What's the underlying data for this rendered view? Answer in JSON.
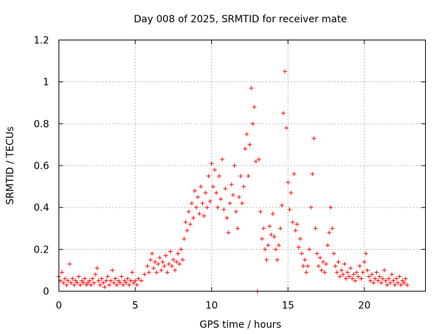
{
  "chart_data": {
    "type": "scatter",
    "title": "Day 008 of 2025, SRMTID for receiver mate",
    "xlabel": "GPS time / hours",
    "ylabel": "SRMTID / TECUs",
    "xlim": [
      0,
      24
    ],
    "ylim": [
      0,
      1.2
    ],
    "xticks": [
      0,
      5,
      10,
      15,
      20
    ],
    "xtick_labels": [
      "0",
      "5",
      "10",
      "15",
      "20"
    ],
    "yticks": [
      0,
      0.2,
      0.4,
      0.6,
      0.8,
      1,
      1.2
    ],
    "ytick_labels": [
      "0",
      "0.2",
      "0.4",
      "0.6",
      "0.8",
      "1",
      "1.2"
    ],
    "grid": true,
    "marker": "+",
    "color": "#ff0000",
    "series": [
      {
        "name": "SRMTID",
        "points": [
          [
            0.0,
            0.07
          ],
          [
            0.1,
            0.05
          ],
          [
            0.2,
            0.09
          ],
          [
            0.3,
            0.04
          ],
          [
            0.4,
            0.06
          ],
          [
            0.5,
            0.03
          ],
          [
            0.6,
            0.05
          ],
          [
            0.7,
            0.13
          ],
          [
            0.8,
            0.04
          ],
          [
            0.9,
            0.06
          ],
          [
            1.0,
            0.03
          ],
          [
            1.1,
            0.05
          ],
          [
            1.2,
            0.04
          ],
          [
            1.3,
            0.07
          ],
          [
            1.4,
            0.03
          ],
          [
            1.5,
            0.05
          ],
          [
            1.6,
            0.04
          ],
          [
            1.7,
            0.06
          ],
          [
            1.8,
            0.03
          ],
          [
            1.9,
            0.04
          ],
          [
            2.0,
            0.05
          ],
          [
            2.1,
            0.03
          ],
          [
            2.2,
            0.06
          ],
          [
            2.3,
            0.04
          ],
          [
            2.4,
            0.08
          ],
          [
            2.5,
            0.11
          ],
          [
            2.6,
            0.05
          ],
          [
            2.7,
            0.03
          ],
          [
            2.8,
            0.06
          ],
          [
            2.9,
            0.04
          ],
          [
            3.0,
            0.02
          ],
          [
            3.1,
            0.05
          ],
          [
            3.2,
            0.07
          ],
          [
            3.3,
            0.03
          ],
          [
            3.4,
            0.05
          ],
          [
            3.5,
            0.1
          ],
          [
            3.6,
            0.04
          ],
          [
            3.7,
            0.06
          ],
          [
            3.8,
            0.03
          ],
          [
            3.9,
            0.05
          ],
          [
            4.0,
            0.04
          ],
          [
            4.1,
            0.07
          ],
          [
            4.2,
            0.03
          ],
          [
            4.3,
            0.05
          ],
          [
            4.4,
            0.04
          ],
          [
            4.5,
            0.06
          ],
          [
            4.6,
            0.03
          ],
          [
            4.7,
            0.05
          ],
          [
            4.8,
            0.09
          ],
          [
            4.9,
            0.04
          ],
          [
            5.0,
            0.05
          ],
          [
            5.1,
            0.03
          ],
          [
            5.2,
            0.06
          ],
          [
            5.4,
            0.05
          ],
          [
            5.6,
            0.08
          ],
          [
            5.8,
            0.12
          ],
          [
            5.9,
            0.09
          ],
          [
            6.0,
            0.15
          ],
          [
            6.1,
            0.18
          ],
          [
            6.2,
            0.11
          ],
          [
            6.3,
            0.14
          ],
          [
            6.4,
            0.09
          ],
          [
            6.5,
            0.13
          ],
          [
            6.6,
            0.16
          ],
          [
            6.7,
            0.1
          ],
          [
            6.8,
            0.14
          ],
          [
            6.9,
            0.12
          ],
          [
            7.0,
            0.17
          ],
          [
            7.1,
            0.09
          ],
          [
            7.2,
            0.13
          ],
          [
            7.3,
            0.19
          ],
          [
            7.4,
            0.12
          ],
          [
            7.5,
            0.15
          ],
          [
            7.6,
            0.1
          ],
          [
            7.7,
            0.14
          ],
          [
            7.8,
            0.18
          ],
          [
            7.9,
            0.13
          ],
          [
            8.0,
            0.2
          ],
          [
            8.1,
            0.15
          ],
          [
            8.2,
            0.25
          ],
          [
            8.3,
            0.33
          ],
          [
            8.4,
            0.29
          ],
          [
            8.5,
            0.38
          ],
          [
            8.6,
            0.32
          ],
          [
            8.7,
            0.42
          ],
          [
            8.8,
            0.35
          ],
          [
            8.9,
            0.48
          ],
          [
            9.0,
            0.4
          ],
          [
            9.1,
            0.45
          ],
          [
            9.2,
            0.37
          ],
          [
            9.3,
            0.5
          ],
          [
            9.4,
            0.42
          ],
          [
            9.5,
            0.36
          ],
          [
            9.6,
            0.47
          ],
          [
            9.7,
            0.4
          ],
          [
            9.8,
            0.55
          ],
          [
            9.9,
            0.43
          ],
          [
            10.0,
            0.61
          ],
          [
            10.1,
            0.5
          ],
          [
            10.2,
            0.58
          ],
          [
            10.3,
            0.47
          ],
          [
            10.4,
            0.4
          ],
          [
            10.5,
            0.55
          ],
          [
            10.6,
            0.44
          ],
          [
            10.7,
            0.63
          ],
          [
            10.8,
            0.39
          ],
          [
            10.9,
            0.49
          ],
          [
            11.0,
            0.35
          ],
          [
            11.1,
            0.28
          ],
          [
            11.2,
            0.42
          ],
          [
            11.3,
            0.51
          ],
          [
            11.4,
            0.46
          ],
          [
            11.5,
            0.6
          ],
          [
            11.6,
            0.38
          ],
          [
            11.7,
            0.3
          ],
          [
            11.8,
            0.45
          ],
          [
            11.9,
            0.55
          ],
          [
            12.0,
            0.42
          ],
          [
            12.1,
            0.5
          ],
          [
            12.2,
            0.68
          ],
          [
            12.3,
            0.75
          ],
          [
            12.4,
            0.55
          ],
          [
            12.5,
            0.7
          ],
          [
            12.6,
            0.97
          ],
          [
            12.7,
            0.8
          ],
          [
            12.8,
            0.88
          ],
          [
            12.9,
            0.62
          ],
          [
            13.0,
            0.0
          ],
          [
            13.1,
            0.63
          ],
          [
            13.2,
            0.38
          ],
          [
            13.3,
            0.25
          ],
          [
            13.4,
            0.3
          ],
          [
            13.5,
            0.2
          ],
          [
            13.6,
            0.15
          ],
          [
            13.7,
            0.22
          ],
          [
            13.8,
            0.31
          ],
          [
            13.9,
            0.27
          ],
          [
            14.0,
            0.37
          ],
          [
            14.1,
            0.26
          ],
          [
            14.2,
            0.2
          ],
          [
            14.3,
            0.15
          ],
          [
            14.4,
            0.22
          ],
          [
            14.5,
            0.3
          ],
          [
            14.6,
            0.41
          ],
          [
            14.7,
            0.85
          ],
          [
            14.8,
            1.05
          ],
          [
            14.9,
            0.78
          ],
          [
            15.0,
            0.52
          ],
          [
            15.1,
            0.39
          ],
          [
            15.2,
            0.47
          ],
          [
            15.3,
            0.33
          ],
          [
            15.4,
            0.56
          ],
          [
            15.5,
            0.29
          ],
          [
            15.6,
            0.32
          ],
          [
            15.7,
            0.21
          ],
          [
            15.8,
            0.25
          ],
          [
            15.9,
            0.18
          ],
          [
            16.0,
            0.12
          ],
          [
            16.1,
            0.15
          ],
          [
            16.2,
            0.09
          ],
          [
            16.3,
            0.12
          ],
          [
            16.4,
            0.2
          ],
          [
            16.5,
            0.4
          ],
          [
            16.6,
            0.56
          ],
          [
            16.7,
            0.73
          ],
          [
            16.8,
            0.3
          ],
          [
            16.9,
            0.18
          ],
          [
            17.0,
            0.12
          ],
          [
            17.1,
            0.16
          ],
          [
            17.2,
            0.1
          ],
          [
            17.3,
            0.14
          ],
          [
            17.4,
            0.09
          ],
          [
            17.5,
            0.13
          ],
          [
            17.6,
            0.22
          ],
          [
            17.7,
            0.28
          ],
          [
            17.8,
            0.4
          ],
          [
            17.9,
            0.3
          ],
          [
            18.0,
            0.18
          ],
          [
            18.1,
            0.12
          ],
          [
            18.2,
            0.09
          ],
          [
            18.3,
            0.14
          ],
          [
            18.4,
            0.07
          ],
          [
            18.5,
            0.1
          ],
          [
            18.6,
            0.08
          ],
          [
            18.7,
            0.13
          ],
          [
            18.8,
            0.06
          ],
          [
            18.9,
            0.09
          ],
          [
            19.0,
            0.07
          ],
          [
            19.1,
            0.11
          ],
          [
            19.2,
            0.06
          ],
          [
            19.3,
            0.08
          ],
          [
            19.4,
            0.05
          ],
          [
            19.5,
            0.09
          ],
          [
            19.6,
            0.07
          ],
          [
            19.7,
            0.12
          ],
          [
            19.8,
            0.06
          ],
          [
            19.9,
            0.09
          ],
          [
            20.0,
            0.14
          ],
          [
            20.1,
            0.18
          ],
          [
            20.2,
            0.1
          ],
          [
            20.3,
            0.07
          ],
          [
            20.4,
            0.05
          ],
          [
            20.5,
            0.08
          ],
          [
            20.6,
            0.04
          ],
          [
            20.7,
            0.06
          ],
          [
            20.8,
            0.09
          ],
          [
            20.9,
            0.05
          ],
          [
            21.0,
            0.07
          ],
          [
            21.1,
            0.04
          ],
          [
            21.2,
            0.06
          ],
          [
            21.3,
            0.1
          ],
          [
            21.4,
            0.05
          ],
          [
            21.5,
            0.03
          ],
          [
            21.6,
            0.06
          ],
          [
            21.7,
            0.04
          ],
          [
            21.8,
            0.08
          ],
          [
            21.9,
            0.05
          ],
          [
            22.0,
            0.03
          ],
          [
            22.1,
            0.06
          ],
          [
            22.2,
            0.04
          ],
          [
            22.3,
            0.07
          ],
          [
            22.4,
            0.03
          ],
          [
            22.5,
            0.05
          ],
          [
            22.6,
            0.04
          ],
          [
            22.7,
            0.06
          ],
          [
            22.8,
            0.03
          ]
        ]
      }
    ]
  }
}
